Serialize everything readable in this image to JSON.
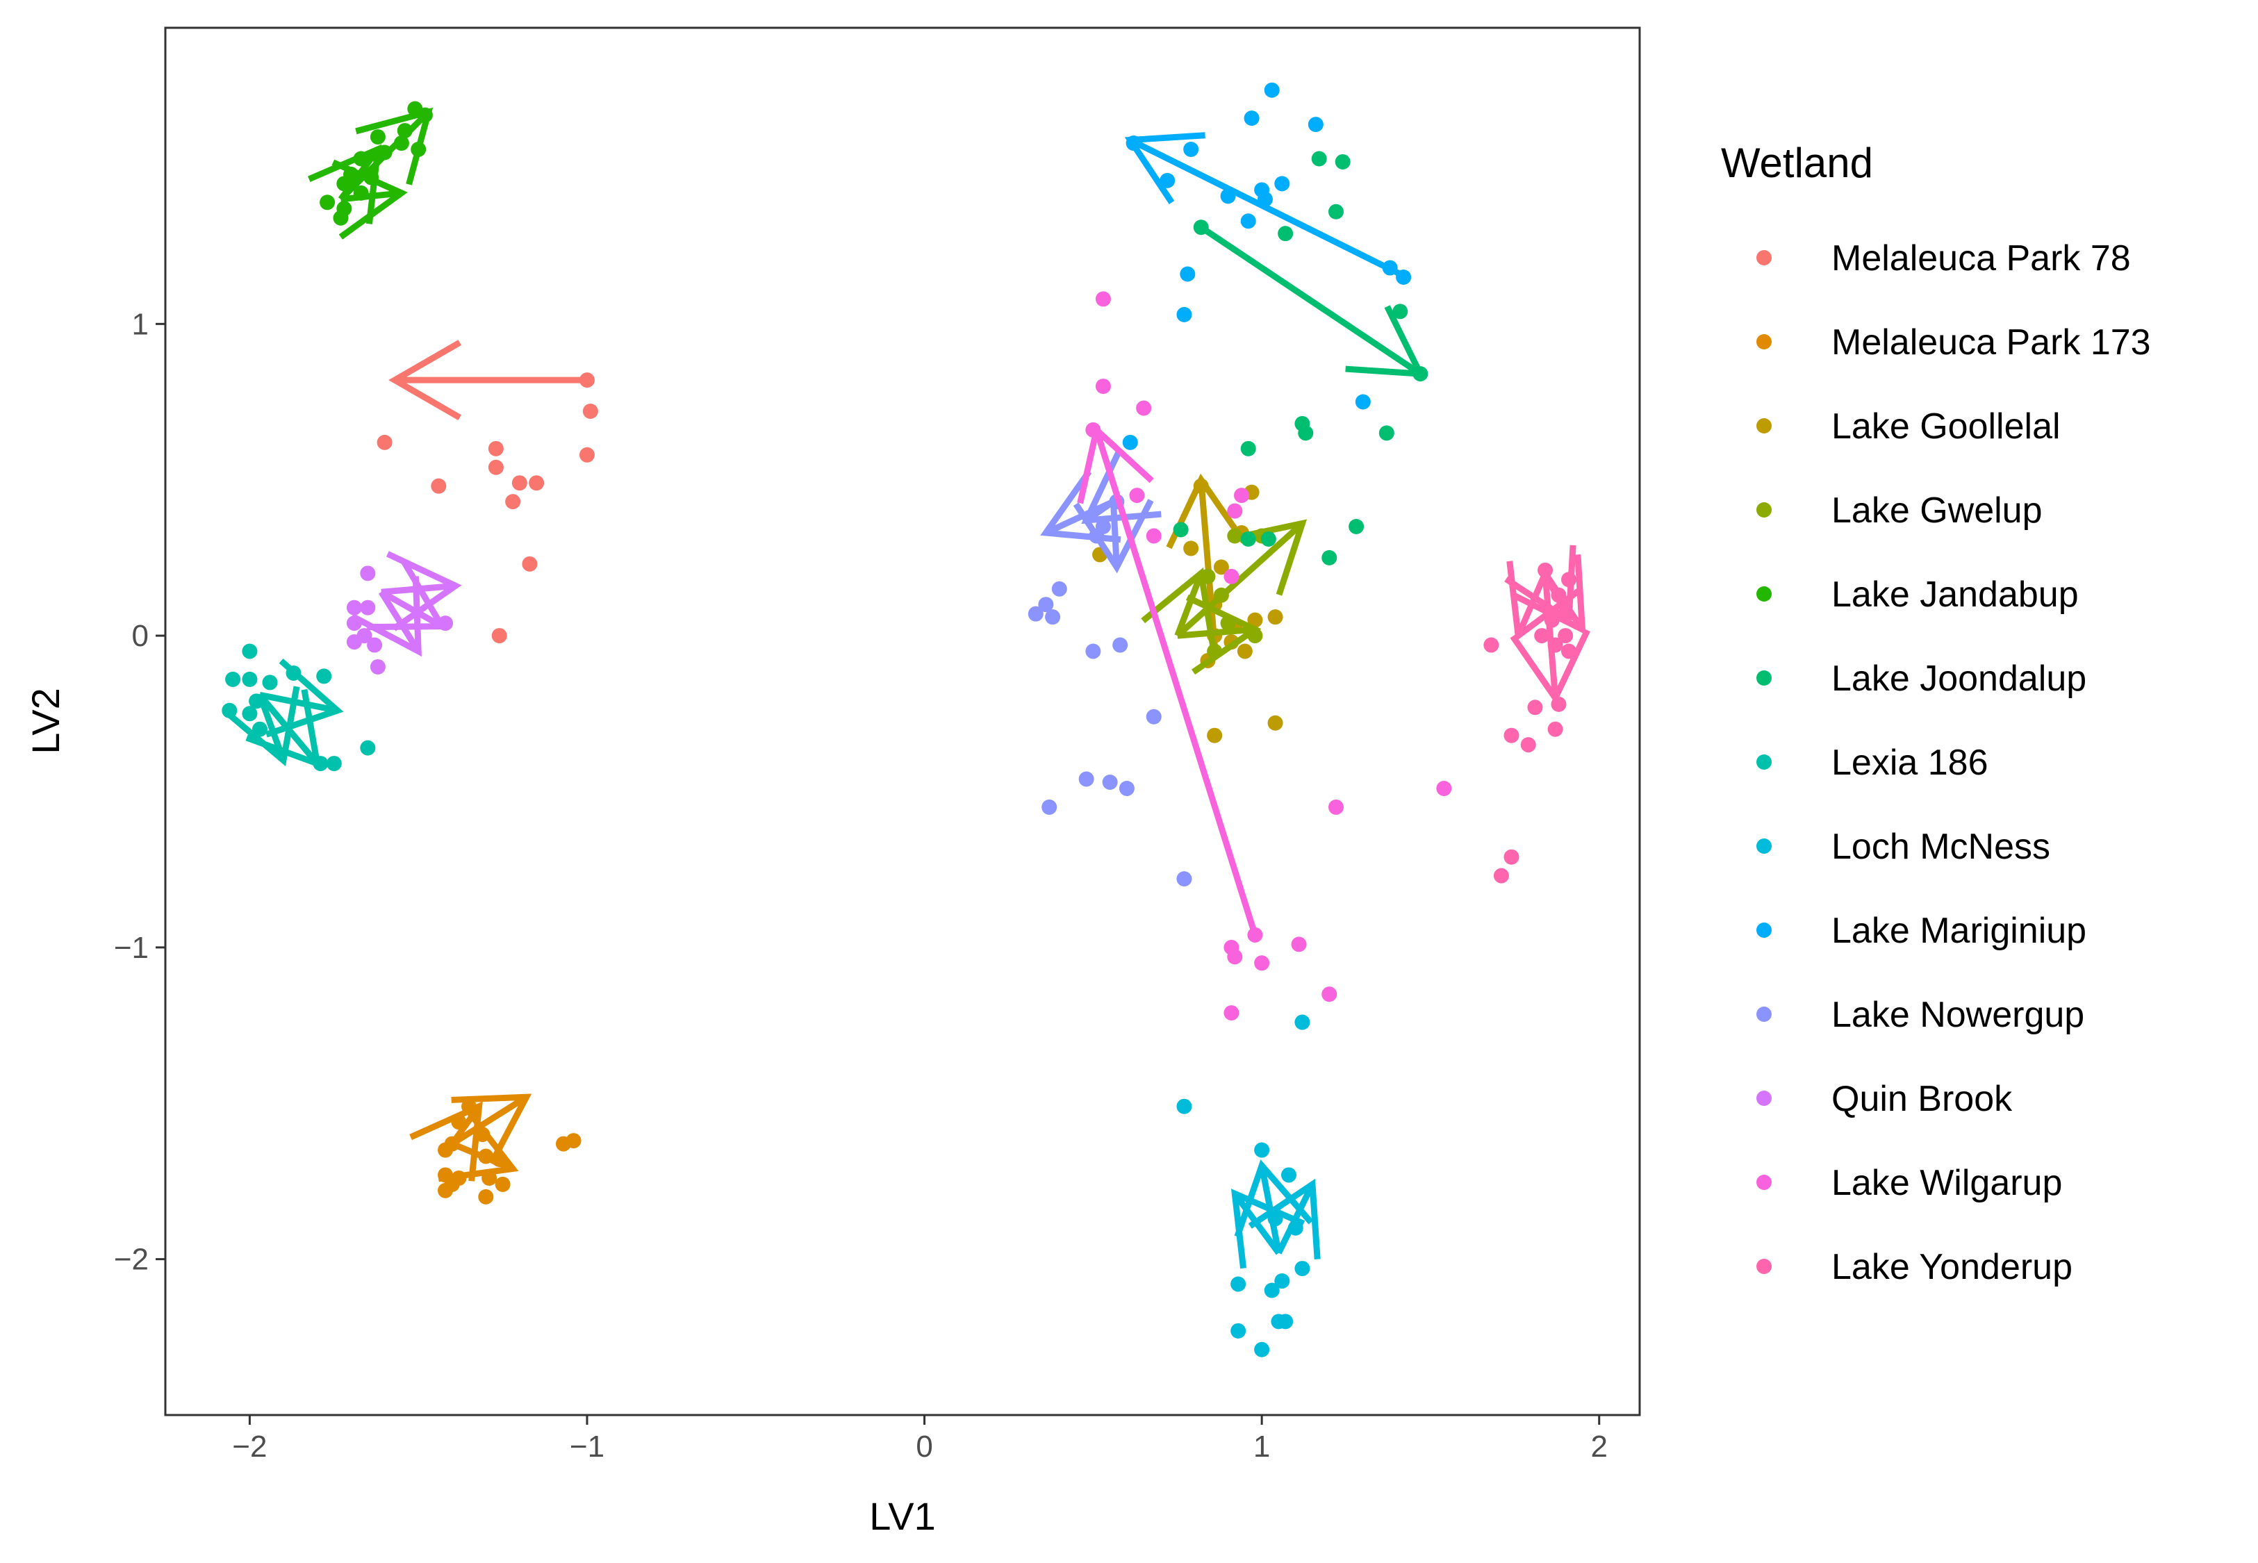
{
  "chart_data": {
    "type": "scatter",
    "title": "",
    "xlabel": "LV1",
    "ylabel": "LV2",
    "xlim": [
      -2.25,
      2.12
    ],
    "ylim": [
      -2.5,
      1.95
    ],
    "xticks": [
      -2,
      -1,
      0,
      1,
      2
    ],
    "yticks": [
      -2,
      -1,
      0,
      1
    ],
    "xtick_labels": [
      "−2",
      "−1",
      "0",
      "1",
      "2"
    ],
    "ytick_labels": [
      "−2",
      "−1",
      "0",
      "1"
    ],
    "grid": false,
    "legend": {
      "title": "Wetland",
      "position": "right"
    },
    "series": [
      {
        "name": "Melaleuca Park 78",
        "color": "#F8766D",
        "points": [
          [
            -1.0,
            0.82
          ],
          [
            -0.99,
            0.72
          ],
          [
            -1.0,
            0.58
          ],
          [
            -1.6,
            0.62
          ],
          [
            -1.44,
            0.48
          ],
          [
            -1.27,
            0.6
          ],
          [
            -1.27,
            0.54
          ],
          [
            -1.2,
            0.49
          ],
          [
            -1.15,
            0.49
          ],
          [
            -1.22,
            0.43
          ],
          [
            -1.17,
            0.23
          ],
          [
            -1.26,
            0.0
          ]
        ],
        "arrows": [
          [
            [
              -1.0,
              0.82
            ],
            [
              -1.57,
              0.82
            ]
          ]
        ]
      },
      {
        "name": "Melaleuca Park 173",
        "color": "#E18A00",
        "points": [
          [
            -1.35,
            -1.51
          ],
          [
            -1.38,
            -1.56
          ],
          [
            -1.31,
            -1.6
          ],
          [
            -1.4,
            -1.63
          ],
          [
            -1.42,
            -1.65
          ],
          [
            -1.3,
            -1.67
          ],
          [
            -1.26,
            -1.68
          ],
          [
            -1.42,
            -1.73
          ],
          [
            -1.38,
            -1.74
          ],
          [
            -1.29,
            -1.74
          ],
          [
            -1.4,
            -1.76
          ],
          [
            -1.42,
            -1.78
          ],
          [
            -1.25,
            -1.76
          ],
          [
            -1.3,
            -1.8
          ],
          [
            -1.04,
            -1.62
          ],
          [
            -1.07,
            -1.63
          ]
        ],
        "arrows": [
          [
            [
              -1.4,
              -1.63
            ],
            [
              -1.18,
              -1.48
            ]
          ],
          [
            [
              -1.4,
              -1.63
            ],
            [
              -1.22,
              -1.71
            ]
          ],
          [
            [
              -1.4,
              -1.63
            ],
            [
              -1.32,
              -1.51
            ]
          ]
        ]
      },
      {
        "name": "Lake Goollelal",
        "color": "#BE9C00",
        "points": [
          [
            0.79,
            0.28
          ],
          [
            0.52,
            0.26
          ],
          [
            0.82,
            0.48
          ],
          [
            0.94,
            0.33
          ],
          [
            0.97,
            0.46
          ],
          [
            0.88,
            0.22
          ],
          [
            0.86,
            0.1
          ],
          [
            0.92,
            0.03
          ],
          [
            0.86,
            0.0
          ],
          [
            0.91,
            -0.02
          ],
          [
            0.95,
            -0.05
          ],
          [
            0.84,
            -0.08
          ],
          [
            0.98,
            0.05
          ],
          [
            1.04,
            0.06
          ],
          [
            0.86,
            -0.32
          ],
          [
            1.04,
            -0.28
          ]
        ],
        "arrows": [
          [
            [
              0.86,
              -0.03
            ],
            [
              0.82,
              0.5
            ]
          ]
        ]
      },
      {
        "name": "Lake Gwelup",
        "color": "#8CAB00",
        "points": [
          [
            0.92,
            0.32
          ],
          [
            1.0,
            0.32
          ],
          [
            0.84,
            0.19
          ],
          [
            0.98,
            0.0
          ],
          [
            0.9,
            0.04
          ],
          [
            0.86,
            -0.05
          ],
          [
            0.88,
            0.13
          ]
        ],
        "arrows": [
          [
            [
              0.75,
              0.0
            ],
            [
              1.12,
              0.36
            ]
          ],
          [
            [
              0.75,
              0.0
            ],
            [
              0.82,
              0.2
            ]
          ],
          [
            [
              0.75,
              0.0
            ],
            [
              0.98,
              0.02
            ]
          ]
        ]
      },
      {
        "name": "Lake Jandabup",
        "color": "#24B700",
        "points": [
          [
            -1.51,
            1.69
          ],
          [
            -1.48,
            1.67
          ],
          [
            -1.54,
            1.62
          ],
          [
            -1.62,
            1.6
          ],
          [
            -1.55,
            1.58
          ],
          [
            -1.6,
            1.55
          ],
          [
            -1.5,
            1.56
          ],
          [
            -1.67,
            1.53
          ],
          [
            -1.7,
            1.48
          ],
          [
            -1.64,
            1.47
          ],
          [
            -1.72,
            1.45
          ],
          [
            -1.67,
            1.42
          ],
          [
            -1.77,
            1.39
          ],
          [
            -1.72,
            1.37
          ],
          [
            -1.73,
            1.34
          ]
        ],
        "arrows": [
          [
            [
              -1.73,
              1.4
            ],
            [
              -1.47,
              1.68
            ]
          ],
          [
            [
              -1.73,
              1.4
            ],
            [
              -1.55,
              1.42
            ]
          ],
          [
            [
              -1.73,
              1.4
            ],
            [
              -1.62,
              1.56
            ]
          ]
        ]
      },
      {
        "name": "Lake Joondalup",
        "color": "#00BE70",
        "points": [
          [
            1.47,
            0.84
          ],
          [
            0.82,
            1.31
          ],
          [
            1.41,
            1.04
          ],
          [
            1.17,
            1.53
          ],
          [
            1.24,
            1.52
          ],
          [
            1.22,
            1.36
          ],
          [
            1.07,
            1.29
          ],
          [
            1.12,
            0.68
          ],
          [
            1.13,
            0.65
          ],
          [
            0.96,
            0.6
          ],
          [
            1.37,
            0.65
          ],
          [
            1.28,
            0.35
          ],
          [
            0.76,
            0.34
          ],
          [
            0.96,
            0.31
          ],
          [
            1.02,
            0.31
          ],
          [
            1.2,
            0.25
          ]
        ],
        "arrows": [
          [
            [
              0.82,
              1.31
            ],
            [
              1.47,
              0.84
            ]
          ]
        ]
      },
      {
        "name": "Lexia 186",
        "color": "#00C1AB",
        "points": [
          [
            -2.05,
            -0.14
          ],
          [
            -2.0,
            -0.14
          ],
          [
            -2.0,
            -0.05
          ],
          [
            -1.94,
            -0.15
          ],
          [
            -1.98,
            -0.21
          ],
          [
            -2.0,
            -0.25
          ],
          [
            -2.06,
            -0.24
          ],
          [
            -1.97,
            -0.3
          ],
          [
            -1.87,
            -0.12
          ],
          [
            -1.78,
            -0.13
          ],
          [
            -1.75,
            -0.41
          ],
          [
            -1.79,
            -0.41
          ],
          [
            -1.65,
            -0.36
          ]
        ],
        "arrows": [
          [
            [
              -1.97,
              -0.19
            ],
            [
              -1.74,
              -0.24
            ]
          ],
          [
            [
              -1.97,
              -0.19
            ],
            [
              -1.8,
              -0.41
            ]
          ],
          [
            [
              -1.97,
              -0.19
            ],
            [
              -1.9,
              -0.4
            ]
          ]
        ]
      },
      {
        "name": "Loch McNess",
        "color": "#00BBDA",
        "points": [
          [
            0.77,
            -1.51
          ],
          [
            1.0,
            -1.65
          ],
          [
            1.04,
            -1.87
          ],
          [
            1.08,
            -1.73
          ],
          [
            1.1,
            -1.9
          ],
          [
            1.12,
            -2.03
          ],
          [
            1.06,
            -2.07
          ],
          [
            0.93,
            -2.08
          ],
          [
            1.03,
            -2.1
          ],
          [
            1.07,
            -2.2
          ],
          [
            1.05,
            -2.2
          ],
          [
            0.93,
            -2.23
          ],
          [
            1.0,
            -2.29
          ],
          [
            1.12,
            -1.24
          ]
        ],
        "arrows": [
          [
            [
              1.05,
              -1.98
            ],
            [
              1.0,
              -1.7
            ]
          ],
          [
            [
              1.05,
              -1.98
            ],
            [
              0.92,
              -1.79
            ]
          ],
          [
            [
              1.05,
              -1.98
            ],
            [
              1.15,
              -1.76
            ]
          ]
        ]
      },
      {
        "name": "Lake Mariginiup",
        "color": "#00ACFC",
        "points": [
          [
            1.03,
            1.75
          ],
          [
            0.97,
            1.66
          ],
          [
            1.16,
            1.64
          ],
          [
            0.62,
            1.58
          ],
          [
            0.79,
            1.56
          ],
          [
            0.72,
            1.46
          ],
          [
            1.06,
            1.45
          ],
          [
            1.0,
            1.43
          ],
          [
            0.9,
            1.41
          ],
          [
            1.01,
            1.4
          ],
          [
            0.96,
            1.33
          ],
          [
            1.38,
            1.18
          ],
          [
            1.42,
            1.15
          ],
          [
            0.78,
            1.16
          ],
          [
            0.77,
            1.03
          ],
          [
            1.3,
            0.75
          ],
          [
            0.61,
            0.62
          ]
        ],
        "arrows": [
          [
            [
              1.41,
              1.16
            ],
            [
              0.61,
              1.59
            ]
          ]
        ]
      },
      {
        "name": "Lake Nowergup",
        "color": "#8B93FF",
        "points": [
          [
            0.33,
            0.07
          ],
          [
            0.36,
            0.1
          ],
          [
            0.4,
            0.15
          ],
          [
            0.38,
            0.06
          ],
          [
            0.51,
            0.32
          ],
          [
            0.53,
            0.35
          ],
          [
            0.57,
            0.43
          ],
          [
            0.5,
            -0.05
          ],
          [
            0.58,
            -0.03
          ],
          [
            0.68,
            -0.26
          ],
          [
            0.37,
            -0.55
          ],
          [
            0.48,
            -0.46
          ],
          [
            0.55,
            -0.47
          ],
          [
            0.6,
            -0.49
          ],
          [
            0.77,
            -0.78
          ]
        ],
        "arrows": [
          [
            [
              0.56,
              0.43
            ],
            [
              0.36,
              0.33
            ]
          ],
          [
            [
              0.56,
              0.43
            ],
            [
              0.57,
              0.22
            ]
          ],
          [
            [
              0.56,
              0.43
            ],
            [
              0.48,
              0.37
            ]
          ]
        ]
      },
      {
        "name": "Quin Brook",
        "color": "#D575FE",
        "points": [
          [
            -1.65,
            0.2
          ],
          [
            -1.69,
            0.09
          ],
          [
            -1.65,
            0.09
          ],
          [
            -1.69,
            0.04
          ],
          [
            -1.66,
            0.0
          ],
          [
            -1.69,
            -0.02
          ],
          [
            -1.63,
            -0.03
          ],
          [
            -1.62,
            -0.1
          ],
          [
            -1.42,
            0.04
          ]
        ],
        "arrows": [
          [
            [
              -1.61,
              0.14
            ],
            [
              -1.39,
              0.16
            ]
          ],
          [
            [
              -1.61,
              0.14
            ],
            [
              -1.5,
              -0.05
            ]
          ],
          [
            [
              -1.61,
              0.14
            ],
            [
              -1.43,
              0.03
            ]
          ]
        ]
      },
      {
        "name": "Lake Wilgarup",
        "color": "#F962DD",
        "points": [
          [
            0.53,
            1.08
          ],
          [
            0.53,
            0.8
          ],
          [
            0.65,
            0.73
          ],
          [
            0.5,
            0.66
          ],
          [
            0.63,
            0.45
          ],
          [
            0.68,
            0.32
          ],
          [
            0.94,
            0.45
          ],
          [
            0.92,
            0.4
          ],
          [
            0.91,
            0.19
          ],
          [
            0.98,
            -0.96
          ],
          [
            0.91,
            -1.0
          ],
          [
            0.92,
            -1.03
          ],
          [
            1.0,
            -1.05
          ],
          [
            1.11,
            -0.99
          ],
          [
            1.2,
            -1.15
          ],
          [
            0.91,
            -1.21
          ],
          [
            1.22,
            -0.55
          ],
          [
            1.54,
            -0.49
          ]
        ],
        "arrows": [
          [
            [
              0.98,
              -0.96
            ],
            [
              0.51,
              0.66
            ]
          ]
        ]
      },
      {
        "name": "Lake Yonderup",
        "color": "#FF65AC",
        "points": [
          [
            1.84,
            0.21
          ],
          [
            1.91,
            0.18
          ],
          [
            1.88,
            0.13
          ],
          [
            1.9,
            0.07
          ],
          [
            1.86,
            0.05
          ],
          [
            1.83,
            0.0
          ],
          [
            1.9,
            0.0
          ],
          [
            1.68,
            -0.03
          ],
          [
            1.87,
            -0.03
          ],
          [
            1.91,
            -0.05
          ],
          [
            1.81,
            -0.23
          ],
          [
            1.88,
            -0.22
          ],
          [
            1.87,
            -0.3
          ],
          [
            1.74,
            -0.32
          ],
          [
            1.79,
            -0.35
          ],
          [
            1.74,
            -0.71
          ],
          [
            1.71,
            -0.77
          ]
        ],
        "arrows": [
          [
            [
              1.84,
              0.2
            ],
            [
              1.87,
              -0.2
            ]
          ],
          [
            [
              1.84,
              0.2
            ],
            [
              1.76,
              0.0
            ]
          ],
          [
            [
              1.84,
              0.2
            ],
            [
              1.95,
              0.02
            ]
          ],
          [
            [
              1.84,
              0.2
            ],
            [
              1.91,
              0.05
            ]
          ]
        ]
      }
    ]
  }
}
